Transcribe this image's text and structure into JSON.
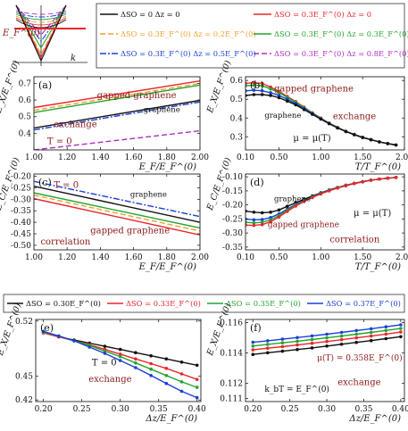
{
  "colors": {
    "black": "#111111",
    "red": "#e8262c",
    "orange": "#f0a030",
    "green": "#22a52a",
    "blue": "#1c3fd6",
    "purple": "#b02fc0",
    "label": "#8b1a1a"
  },
  "inset": {
    "ylabel": "E_F^(0)",
    "xlabel": "k"
  },
  "legend_top": {
    "entries": [
      {
        "series": "black",
        "text": "ΔSO = 0        Δz = 0"
      },
      {
        "series": "red",
        "text": "ΔSO = 0.3E_F^(0)  Δz = 0"
      },
      {
        "series": "orange",
        "text": "ΔSO = 0.3E_F^(0)  Δz = 0.2E_F^(0)"
      },
      {
        "series": "green",
        "text": "ΔSO = 0.3E_F^(0)  Δz = 0.3E_F^(0)"
      },
      {
        "series": "blue",
        "text": "ΔSO = 0.3E_F^(0)  Δz = 0.5E_F^(0)"
      },
      {
        "series": "purple",
        "text": "ΔSO = 0.3E_F^(0)  Δz = 0.8E_F^(0)"
      }
    ]
  },
  "legend_mid": {
    "entries": [
      {
        "series": "black",
        "text": "ΔSO = 0.30E_F^(0)"
      },
      {
        "series": "red",
        "text": "ΔSO = 0.33E_F^(0)"
      },
      {
        "series": "green",
        "text": "ΔSO = 0.35E_F^(0)"
      },
      {
        "series": "blue",
        "text": "ΔSO = 0.37E_F^(0)"
      }
    ]
  },
  "chart_data": [
    {
      "panel": "(a)",
      "type": "line",
      "xlabel": "E_F/E_F^(0)",
      "ylabel": "E_X/E_F^(0)",
      "xlim": [
        1.0,
        2.0
      ],
      "ylim": [
        0.3,
        0.74
      ],
      "xticks": [
        "1.00",
        "1.20",
        "1.40",
        "1.60",
        "1.80",
        "2.00"
      ],
      "yticks": [
        "0.4",
        "0.5",
        "0.6",
        "0.7"
      ],
      "annotations": [
        "gapped graphene",
        "graphene",
        "exchange",
        "T = 0"
      ],
      "series": [
        {
          "color": "red",
          "dash": "solid",
          "x": [
            1.0,
            2.0
          ],
          "y": [
            0.555,
            0.715
          ]
        },
        {
          "color": "orange",
          "dash": "dashed",
          "x": [
            1.0,
            2.0
          ],
          "y": [
            0.538,
            0.7
          ]
        },
        {
          "color": "green",
          "dash": "solid",
          "x": [
            1.0,
            2.0
          ],
          "y": [
            0.525,
            0.69
          ]
        },
        {
          "color": "black",
          "dash": "solid",
          "x": [
            1.0,
            2.0
          ],
          "y": [
            0.432,
            0.598
          ]
        },
        {
          "color": "blue",
          "dash": "dashdot",
          "x": [
            1.0,
            2.0
          ],
          "y": [
            0.42,
            0.588
          ]
        },
        {
          "color": "purple",
          "dash": "dashed",
          "x": [
            1.0,
            2.0
          ],
          "y": [
            0.3,
            0.415
          ]
        }
      ]
    },
    {
      "panel": "(b)",
      "type": "line",
      "xlabel": "T/T_F^(0)",
      "ylabel": "E_X/E_F^(0)",
      "xlim": [
        0.1,
        2.0
      ],
      "ylim": [
        0.23,
        0.62
      ],
      "xticks": [
        "0.10",
        "0.50",
        "1.00",
        "1.50",
        "2.00"
      ],
      "yticks": [
        "0.3",
        "0.4",
        "0.5",
        "0.6"
      ],
      "annotations": [
        "gapped graphene",
        "graphene",
        "exchange",
        "μ = μ(T)"
      ],
      "series": [
        {
          "color": "red",
          "markers": true,
          "x": [
            0.1,
            0.2,
            0.3,
            0.4,
            0.5,
            0.6,
            0.7,
            0.8,
            0.9,
            1.0,
            1.1,
            1.2,
            1.3,
            1.4,
            1.5,
            1.6,
            1.7,
            1.8,
            1.9
          ],
          "y": [
            0.585,
            0.588,
            0.585,
            0.565,
            0.542,
            0.515,
            0.488,
            0.458,
            0.428,
            0.4,
            0.373,
            0.35,
            0.33,
            0.313,
            0.297,
            0.285,
            0.273,
            0.264,
            0.256
          ]
        },
        {
          "color": "green",
          "markers": true,
          "x": [
            0.1,
            0.2,
            0.3,
            0.4,
            0.5,
            0.6,
            0.7,
            0.8,
            0.9,
            1.0,
            1.1,
            1.2,
            1.3,
            1.4,
            1.5,
            1.6,
            1.7,
            1.8,
            1.9
          ],
          "y": [
            0.572,
            0.575,
            0.572,
            0.555,
            0.535,
            0.51,
            0.484,
            0.455,
            0.426,
            0.398,
            0.372,
            0.349,
            0.329,
            0.312,
            0.297,
            0.284,
            0.273,
            0.264,
            0.256
          ]
        },
        {
          "color": "blue",
          "markers": true,
          "x": [
            0.1,
            0.2,
            0.3,
            0.4,
            0.5,
            0.6,
            0.7,
            0.8,
            0.9,
            1.0,
            1.1,
            1.2,
            1.3,
            1.4,
            1.5,
            1.6,
            1.7,
            1.8,
            1.9
          ],
          "y": [
            0.545,
            0.548,
            0.545,
            0.535,
            0.52,
            0.5,
            0.477,
            0.45,
            0.423,
            0.396,
            0.371,
            0.348,
            0.328,
            0.311,
            0.296,
            0.284,
            0.273,
            0.264,
            0.256
          ]
        },
        {
          "color": "black",
          "markers": true,
          "x": [
            0.1,
            0.2,
            0.3,
            0.4,
            0.5,
            0.6,
            0.7,
            0.8,
            0.9,
            1.0,
            1.1,
            1.2,
            1.3,
            1.4,
            1.5,
            1.6,
            1.7,
            1.8,
            1.9
          ],
          "y": [
            0.52,
            0.525,
            0.525,
            0.52,
            0.508,
            0.49,
            0.47,
            0.445,
            0.42,
            0.394,
            0.37,
            0.347,
            0.328,
            0.311,
            0.296,
            0.284,
            0.273,
            0.264,
            0.256
          ]
        }
      ]
    },
    {
      "panel": "(c)",
      "type": "line",
      "xlabel": "E_F/E_F^(0)",
      "ylabel": "E_C/E_F^(0)",
      "xlim": [
        1.0,
        2.0
      ],
      "ylim": [
        -0.52,
        -0.19
      ],
      "xticks": [
        "1.00",
        "1.20",
        "1.40",
        "1.60",
        "1.80",
        "2.00"
      ],
      "yticks": [
        "-0.20",
        "-0.25",
        "-0.30",
        "-0.35",
        "-0.40",
        "-0.45",
        "-0.50"
      ],
      "annotations": [
        "graphene",
        "gapped graphene",
        "correlation",
        "T = 0"
      ],
      "series": [
        {
          "color": "blue",
          "dash": "dashdot",
          "x": [
            1.0,
            2.0
          ],
          "y": [
            -0.222,
            -0.375
          ]
        },
        {
          "color": "black",
          "dash": "solid",
          "x": [
            1.0,
            2.0
          ],
          "y": [
            -0.243,
            -0.4
          ]
        },
        {
          "color": "green",
          "dash": "solid",
          "x": [
            1.0,
            2.0
          ],
          "y": [
            -0.272,
            -0.425
          ]
        },
        {
          "color": "orange",
          "dash": "dashed",
          "x": [
            1.0,
            2.0
          ],
          "y": [
            -0.282,
            -0.438
          ]
        },
        {
          "color": "red",
          "dash": "solid",
          "x": [
            1.0,
            2.0
          ],
          "y": [
            -0.297,
            -0.455
          ]
        }
      ]
    },
    {
      "panel": "(d)",
      "type": "line",
      "xlabel": "T/T_F^(0)",
      "ylabel": "E_C/E_F^(0)",
      "xlim": [
        0.1,
        2.0
      ],
      "ylim": [
        -0.36,
        -0.09
      ],
      "xticks": [
        "0.10",
        "0.50",
        "1.00",
        "1.50",
        "2.00"
      ],
      "yticks": [
        "-0.10",
        "-0.15",
        "-0.20",
        "-0.25",
        "-0.30",
        "-0.35"
      ],
      "annotations": [
        "graphene",
        "gapped graphene",
        "correlation",
        "μ = μ(T)"
      ],
      "series": [
        {
          "color": "black",
          "markers": true,
          "x": [
            0.1,
            0.2,
            0.3,
            0.4,
            0.5,
            0.6,
            0.7,
            0.8,
            0.9,
            1.0,
            1.1,
            1.2,
            1.3,
            1.4,
            1.5,
            1.6,
            1.7,
            1.8,
            1.9
          ],
          "y": [
            -0.222,
            -0.226,
            -0.228,
            -0.226,
            -0.218,
            -0.205,
            -0.192,
            -0.18,
            -0.168,
            -0.157,
            -0.147,
            -0.138,
            -0.13,
            -0.123,
            -0.117,
            -0.112,
            -0.108,
            -0.105,
            -0.102
          ]
        },
        {
          "color": "blue",
          "markers": true,
          "x": [
            0.1,
            0.2,
            0.3,
            0.4,
            0.5,
            0.6,
            0.7,
            0.8,
            0.9,
            1.0,
            1.1,
            1.2,
            1.3,
            1.4,
            1.5,
            1.6,
            1.7,
            1.8,
            1.9
          ],
          "y": [
            -0.25,
            -0.253,
            -0.252,
            -0.245,
            -0.232,
            -0.215,
            -0.198,
            -0.184,
            -0.171,
            -0.159,
            -0.148,
            -0.139,
            -0.131,
            -0.124,
            -0.118,
            -0.112,
            -0.108,
            -0.105,
            -0.102
          ]
        },
        {
          "color": "green",
          "markers": true,
          "x": [
            0.1,
            0.2,
            0.3,
            0.4,
            0.5,
            0.6,
            0.7,
            0.8,
            0.9,
            1.0,
            1.1,
            1.2,
            1.3,
            1.4,
            1.5,
            1.6,
            1.7,
            1.8,
            1.9
          ],
          "y": [
            -0.262,
            -0.264,
            -0.262,
            -0.253,
            -0.238,
            -0.219,
            -0.201,
            -0.186,
            -0.172,
            -0.16,
            -0.149,
            -0.139,
            -0.131,
            -0.124,
            -0.118,
            -0.112,
            -0.108,
            -0.105,
            -0.102
          ]
        },
        {
          "color": "red",
          "markers": true,
          "x": [
            0.1,
            0.2,
            0.3,
            0.4,
            0.5,
            0.6,
            0.7,
            0.8,
            0.9,
            1.0,
            1.1,
            1.2,
            1.3,
            1.4,
            1.5,
            1.6,
            1.7,
            1.8,
            1.9
          ],
          "y": [
            -0.272,
            -0.273,
            -0.27,
            -0.26,
            -0.243,
            -0.223,
            -0.204,
            -0.188,
            -0.174,
            -0.161,
            -0.15,
            -0.14,
            -0.132,
            -0.124,
            -0.118,
            -0.112,
            -0.108,
            -0.105,
            -0.102
          ]
        }
      ]
    },
    {
      "panel": "(e)",
      "type": "line",
      "xlabel": "Δz/E_F^(0)",
      "ylabel": "E_X/E_F^(0)",
      "xlim": [
        0.19,
        0.405
      ],
      "ylim": [
        0.418,
        0.522
      ],
      "xticks": [
        "0.20",
        "0.25",
        "0.30",
        "0.35",
        "0.40"
      ],
      "yticks": [
        "0.52",
        "0.45",
        "0.42"
      ],
      "annotations": [
        "T = 0",
        "exchange"
      ],
      "series": [
        {
          "color": "black",
          "markers": true,
          "x": [
            0.2,
            0.22,
            0.24,
            0.26,
            0.28,
            0.3,
            0.32,
            0.34,
            0.36,
            0.38,
            0.4
          ],
          "y": [
            0.505,
            0.5,
            0.496,
            0.492,
            0.488,
            0.484,
            0.48,
            0.476,
            0.472,
            0.468,
            0.464
          ]
        },
        {
          "color": "red",
          "markers": true,
          "x": [
            0.2,
            0.22,
            0.24,
            0.26,
            0.28,
            0.3,
            0.32,
            0.34,
            0.36,
            0.38,
            0.4
          ],
          "y": [
            0.505,
            0.5,
            0.495,
            0.49,
            0.484,
            0.478,
            0.472,
            0.466,
            0.46,
            0.453,
            0.446
          ]
        },
        {
          "color": "green",
          "markers": true,
          "x": [
            0.2,
            0.22,
            0.24,
            0.26,
            0.28,
            0.3,
            0.32,
            0.34,
            0.36,
            0.38,
            0.4
          ],
          "y": [
            0.506,
            0.501,
            0.495,
            0.489,
            0.482,
            0.475,
            0.467,
            0.459,
            0.451,
            0.443,
            0.436
          ]
        },
        {
          "color": "blue",
          "markers": true,
          "x": [
            0.2,
            0.22,
            0.24,
            0.26,
            0.28,
            0.3,
            0.32,
            0.34,
            0.36,
            0.38,
            0.4
          ],
          "y": [
            0.507,
            0.501,
            0.495,
            0.487,
            0.479,
            0.47,
            0.461,
            0.451,
            0.441,
            0.431,
            0.423
          ]
        }
      ]
    },
    {
      "panel": "(f)",
      "type": "line",
      "xlabel": "Δz/E_F^(0)",
      "ylabel": "E_X/E_F^(0)",
      "xlim": [
        0.19,
        0.405
      ],
      "ylim": [
        0.1108,
        0.1162
      ],
      "xticks": [
        "0.20",
        "0.25",
        "0.30",
        "0.35",
        "0.40"
      ],
      "yticks": [
        "0.116",
        "0.114",
        "0.112",
        "0.111"
      ],
      "annotations": [
        "μ(T) = 0.358E_F^(0)",
        "k_bT = E_F^(0)",
        "exchange"
      ],
      "series": [
        {
          "color": "blue",
          "markers": true,
          "x": [
            0.2,
            0.22,
            0.24,
            0.26,
            0.28,
            0.3,
            0.32,
            0.34,
            0.36,
            0.38,
            0.4
          ],
          "y": [
            0.1147,
            0.1148,
            0.1149,
            0.11501,
            0.11512,
            0.11523,
            0.11535,
            0.11547,
            0.11559,
            0.11572,
            0.11585
          ]
        },
        {
          "color": "green",
          "markers": true,
          "x": [
            0.2,
            0.22,
            0.24,
            0.26,
            0.28,
            0.3,
            0.32,
            0.34,
            0.36,
            0.38,
            0.4
          ],
          "y": [
            0.11445,
            0.11456,
            0.11466,
            0.11477,
            0.11488,
            0.11499,
            0.11511,
            0.11523,
            0.11535,
            0.11548,
            0.11561
          ]
        },
        {
          "color": "red",
          "markers": true,
          "x": [
            0.2,
            0.22,
            0.24,
            0.26,
            0.28,
            0.3,
            0.32,
            0.34,
            0.36,
            0.38,
            0.4
          ],
          "y": [
            0.1142,
            0.11431,
            0.11441,
            0.11452,
            0.11463,
            0.11475,
            0.11487,
            0.11499,
            0.11511,
            0.11524,
            0.11537
          ]
        },
        {
          "color": "black",
          "markers": true,
          "x": [
            0.2,
            0.22,
            0.24,
            0.26,
            0.28,
            0.3,
            0.32,
            0.34,
            0.36,
            0.38,
            0.4
          ],
          "y": [
            0.1139,
            0.11401,
            0.11411,
            0.11422,
            0.11433,
            0.11445,
            0.11457,
            0.11469,
            0.11481,
            0.11494,
            0.11507
          ]
        }
      ]
    }
  ]
}
